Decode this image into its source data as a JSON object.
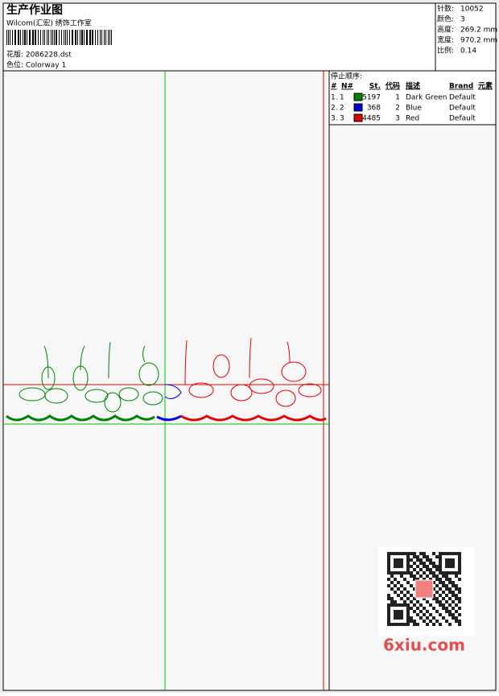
{
  "header": {
    "title": "生产作业图",
    "studio": "Wilcom(汇宏) 绣饰工作室",
    "design": "花版: 2086228.dst",
    "colorway": "色位: Colorway 1"
  },
  "info": [
    {
      "label": "针数:",
      "value": "10052"
    },
    {
      "label": "颜色:",
      "value": "3"
    },
    {
      "label": "高度:",
      "value": "269.2 mm"
    },
    {
      "label": "宽度:",
      "value": "970.2 mm"
    },
    {
      "label": "比例:",
      "value": "0.14"
    }
  ],
  "stop_sequence": {
    "title": "停止顺序:",
    "columns": [
      "#",
      "N#",
      "St.",
      "代码",
      "描述",
      "Brand",
      "元素"
    ],
    "rows": [
      {
        "index": "1.",
        "number": "1",
        "color": "#008000",
        "stitches": "5197",
        "code": "1",
        "description": "Dark Green",
        "brand": "Default"
      },
      {
        "index": "2.",
        "number": "2",
        "color": "#0000e0",
        "stitches": "368",
        "code": "2",
        "description": "Blue",
        "brand": "Default"
      },
      {
        "index": "3.",
        "number": "3",
        "color": "#e00000",
        "stitches": "4485",
        "code": "3",
        "description": "Red",
        "brand": "Default"
      }
    ]
  },
  "watermark": "6xiu.com"
}
